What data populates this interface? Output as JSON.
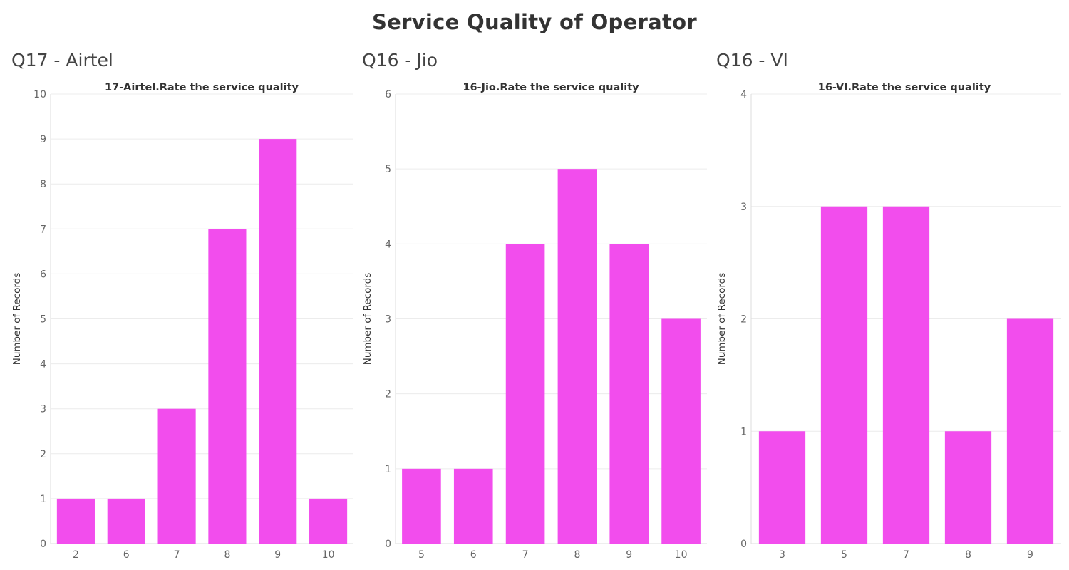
{
  "dashboard": {
    "title": "Service Quality of Operator"
  },
  "colors": {
    "bar": "#f24ded",
    "grid": "#ececec",
    "axis": "#dddddd"
  },
  "panels": [
    {
      "heading": "Q17 - Airtel"
    },
    {
      "heading": "Q16 - Jio"
    },
    {
      "heading": "Q16 - VI"
    }
  ],
  "chart_data": [
    {
      "type": "bar",
      "title": "17-Airtel.Rate the service quality",
      "xlabel": "",
      "ylabel": "Number of Records",
      "categories": [
        "2",
        "6",
        "7",
        "8",
        "9",
        "10"
      ],
      "values": [
        1,
        1,
        3,
        7,
        9,
        1
      ],
      "ylim": [
        0,
        10
      ],
      "yticks": [
        0,
        1,
        2,
        3,
        4,
        5,
        6,
        7,
        8,
        9,
        10
      ],
      "grid": true
    },
    {
      "type": "bar",
      "title": "16-Jio.Rate the service quality",
      "xlabel": "",
      "ylabel": "Number of Records",
      "categories": [
        "5",
        "6",
        "7",
        "8",
        "9",
        "10"
      ],
      "values": [
        1,
        1,
        4,
        5,
        4,
        3
      ],
      "ylim": [
        0,
        6
      ],
      "yticks": [
        0,
        1,
        2,
        3,
        4,
        5,
        6
      ],
      "grid": true
    },
    {
      "type": "bar",
      "title": "16-VI.Rate the service quality",
      "xlabel": "",
      "ylabel": "Number of Records",
      "categories": [
        "3",
        "5",
        "7",
        "8",
        "9"
      ],
      "values": [
        1,
        3,
        3,
        1,
        2
      ],
      "ylim": [
        0,
        4
      ],
      "yticks": [
        0,
        1,
        2,
        3,
        4
      ],
      "grid": true
    }
  ]
}
